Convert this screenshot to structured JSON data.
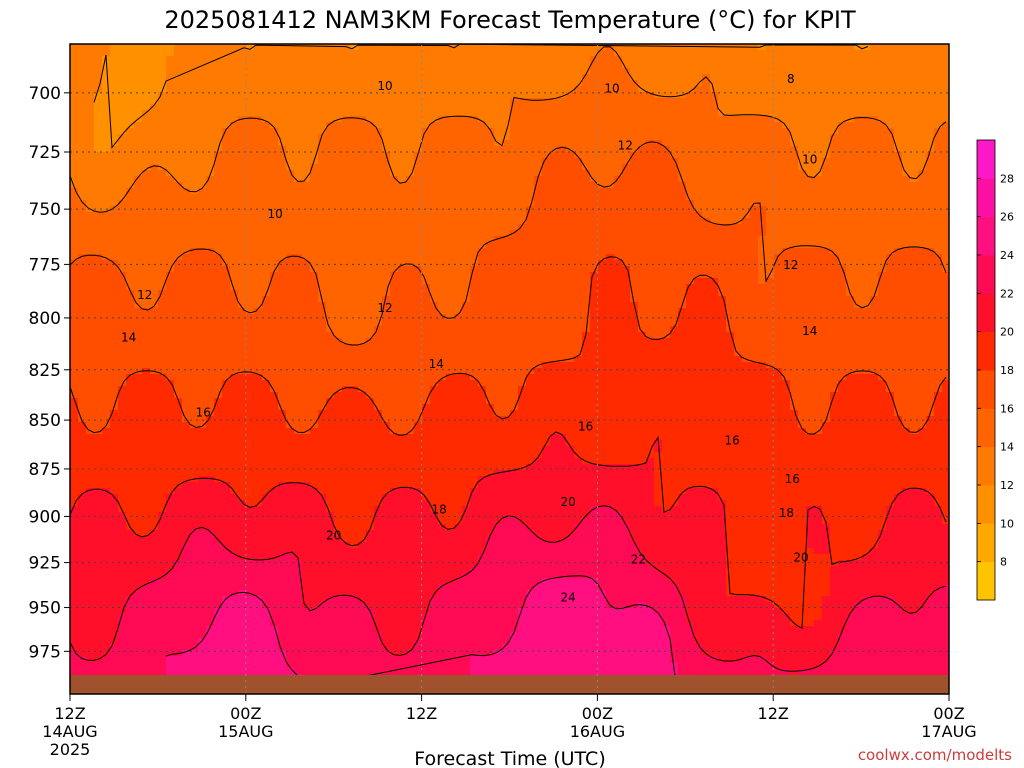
{
  "chart_data": {
    "type": "heatmap",
    "title": "2025081412 NAM3KM Forecast Temperature (°C) for KPIT",
    "xlabel": "Forecast Time (UTC)",
    "ylabel": "",
    "y_ticks": [
      "700",
      "725",
      "750",
      "775",
      "800",
      "825",
      "850",
      "875",
      "900",
      "925",
      "950",
      "975"
    ],
    "ylim": [
      1000,
      680
    ],
    "y_scale": "log",
    "x_ticks": [
      {
        "hour": 0,
        "label": "12Z",
        "date": "14AUG",
        "year": "2025"
      },
      {
        "hour": 12,
        "label": "00Z",
        "date": "15AUG",
        "year": ""
      },
      {
        "hour": 24,
        "label": "12Z",
        "date": "",
        "year": ""
      },
      {
        "hour": 36,
        "label": "00Z",
        "date": "16AUG",
        "year": ""
      },
      {
        "hour": 48,
        "label": "12Z",
        "date": "",
        "year": ""
      },
      {
        "hour": 60,
        "label": "00Z",
        "date": "17AUG",
        "year": ""
      }
    ],
    "xlim_hours": [
      0,
      60
    ],
    "contour_levels": [
      8,
      10,
      12,
      14,
      16,
      18,
      20,
      22,
      24
    ],
    "contour_labels": [
      {
        "text": "8",
        "hour": 49.2,
        "pres": 694
      },
      {
        "text": "10",
        "hour": 21.5,
        "pres": 697
      },
      {
        "text": "10",
        "hour": 37.0,
        "pres": 698
      },
      {
        "text": "10",
        "hour": 14.0,
        "pres": 752
      },
      {
        "text": "10",
        "hour": 50.5,
        "pres": 728
      },
      {
        "text": "12",
        "hour": 37.9,
        "pres": 722
      },
      {
        "text": "12",
        "hour": 5.1,
        "pres": 789
      },
      {
        "text": "12",
        "hour": 21.5,
        "pres": 795
      },
      {
        "text": "12",
        "hour": 49.2,
        "pres": 775
      },
      {
        "text": "14",
        "hour": 4.0,
        "pres": 809
      },
      {
        "text": "14",
        "hour": 25.0,
        "pres": 822
      },
      {
        "text": "14",
        "hour": 50.5,
        "pres": 806
      },
      {
        "text": "16",
        "hour": 9.1,
        "pres": 846
      },
      {
        "text": "16",
        "hour": 35.2,
        "pres": 853
      },
      {
        "text": "16",
        "hour": 45.2,
        "pres": 860
      },
      {
        "text": "16",
        "hour": 49.3,
        "pres": 880
      },
      {
        "text": "18",
        "hour": 25.2,
        "pres": 896
      },
      {
        "text": "18",
        "hour": 48.9,
        "pres": 898
      },
      {
        "text": "20",
        "hour": 18.0,
        "pres": 910
      },
      {
        "text": "20",
        "hour": 34.0,
        "pres": 892
      },
      {
        "text": "20",
        "hour": 49.9,
        "pres": 922
      },
      {
        "text": "22",
        "hour": 38.8,
        "pres": 923
      },
      {
        "text": "24",
        "hour": 34.0,
        "pres": 944
      }
    ],
    "colorbar": {
      "ticks": [
        "8",
        "10",
        "12",
        "14",
        "16",
        "18",
        "20",
        "22",
        "24",
        "26",
        "28"
      ],
      "colors": [
        "#ffc400",
        "#ffa800",
        "#ff9000",
        "#ff7a00",
        "#ff6400",
        "#ff4e00",
        "#ff2a00",
        "#ff0f2a",
        "#ff0a55",
        "#ff0f80",
        "#ff10a5",
        "#ff18c8"
      ]
    },
    "ground_color": "#a0522d",
    "credit": "coolwx.com/modelts"
  }
}
